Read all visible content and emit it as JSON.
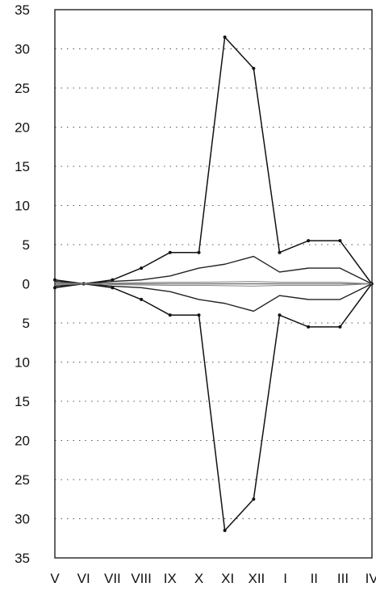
{
  "chart_data": {
    "type": "line",
    "title": "",
    "xlabel": "",
    "ylabel": "",
    "categories": [
      "V",
      "VI",
      "VII",
      "VIII",
      "IX",
      "X",
      "XI",
      "XII",
      "I",
      "II",
      "III",
      "IV"
    ],
    "y_tick_labels": [
      "35",
      "30",
      "25",
      "20",
      "15",
      "10",
      "5",
      "0",
      "5",
      "10",
      "15",
      "20",
      "25",
      "30",
      "35"
    ],
    "ylim": [
      -35,
      35
    ],
    "grid": true,
    "mirrored_about_zero": true,
    "series": [
      {
        "x": [
          0,
          1,
          2,
          3,
          4,
          5,
          5.9,
          6.9,
          7.8,
          8.8,
          9.9,
          11
        ],
        "values": [
          0.5,
          0.0,
          0.5,
          2.0,
          4.0,
          4.0,
          31.5,
          27.5,
          4.0,
          5.5,
          5.5,
          0.0
        ]
      },
      {
        "x": [
          0,
          1,
          2,
          3,
          4,
          5,
          5.9,
          6.9,
          7.8,
          8.8,
          9.9,
          11
        ],
        "values": [
          0.3,
          0.0,
          0.3,
          0.5,
          1.0,
          2.0,
          2.5,
          3.5,
          1.5,
          2.0,
          2.0,
          0.0
        ]
      },
      {
        "x": [
          0,
          1,
          2,
          3,
          4,
          5,
          5.9,
          6.9,
          7.8,
          8.8,
          9.9,
          11
        ],
        "values": [
          0.15,
          0.0,
          0.1,
          0.15,
          0.2,
          0.2,
          0.25,
          0.3,
          0.2,
          0.2,
          0.2,
          0.0
        ]
      }
    ]
  }
}
